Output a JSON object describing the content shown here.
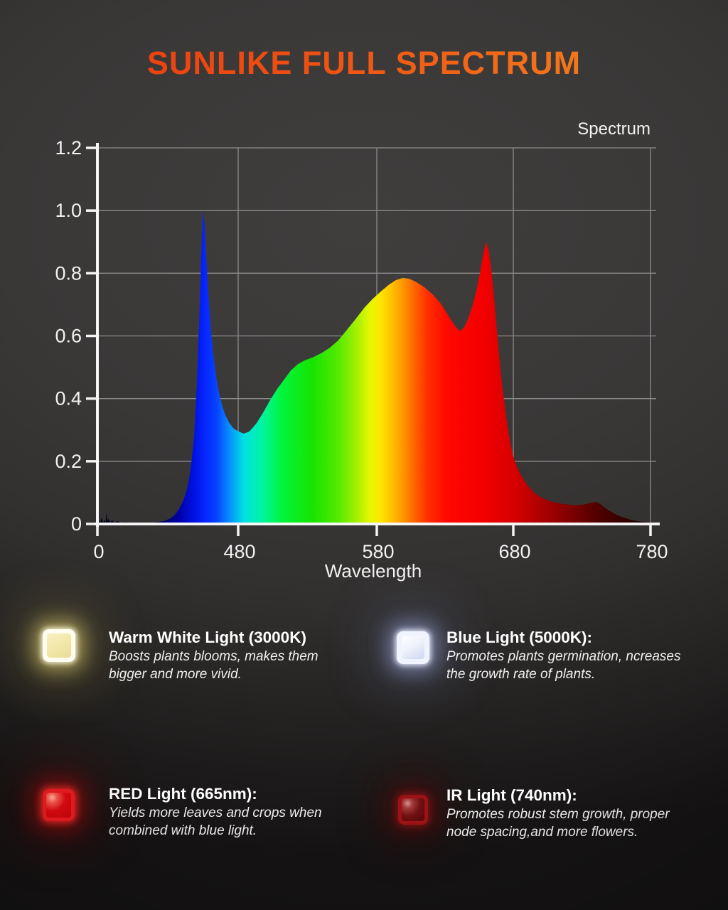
{
  "page": {
    "title": "SUNLIKE FULL SPECTRUM",
    "title_gradient": [
      "#e9380e",
      "#f68b1f"
    ],
    "background_color": "#363433",
    "text_color": "#f2f2f2"
  },
  "chart_data": {
    "type": "area",
    "title": "Spectrum",
    "xlabel": "Wavelength",
    "x_ticks": [
      0,
      480,
      580,
      680,
      780
    ],
    "y_tick_labels": [
      "0",
      "0.2",
      "0.4",
      "0.6",
      "0.8",
      "1.0",
      "1.2"
    ],
    "ylim": [
      0,
      1.2
    ],
    "grid": true,
    "x_scale_note": "0-480 nm compressed into the first tick interval; 100 nm per interval thereafter",
    "axis_color": "#f5f5f5",
    "grid_color": "#a0a0a0",
    "points": [
      [
        0,
        0.002
      ],
      [
        5,
        0.01
      ],
      [
        9,
        0.003
      ],
      [
        14,
        0.02
      ],
      [
        19,
        0.005
      ],
      [
        24,
        0.012
      ],
      [
        28,
        0.005
      ],
      [
        31,
        0.038
      ],
      [
        34,
        0.007
      ],
      [
        38,
        0.018
      ],
      [
        43,
        0.004
      ],
      [
        50,
        0.012
      ],
      [
        58,
        0.004
      ],
      [
        68,
        0.009
      ],
      [
        80,
        0.004
      ],
      [
        95,
        0.006
      ],
      [
        115,
        0.003
      ],
      [
        140,
        0.004
      ],
      [
        175,
        0.004
      ],
      [
        205,
        0.006
      ],
      [
        230,
        0.01
      ],
      [
        250,
        0.018
      ],
      [
        265,
        0.03
      ],
      [
        280,
        0.05
      ],
      [
        293,
        0.075
      ],
      [
        304,
        0.105
      ],
      [
        313,
        0.145
      ],
      [
        321,
        0.2
      ],
      [
        330,
        0.28
      ],
      [
        339,
        0.44
      ],
      [
        348,
        0.66
      ],
      [
        354,
        0.85
      ],
      [
        358,
        0.95
      ],
      [
        361,
        1.0
      ],
      [
        365,
        0.96
      ],
      [
        369,
        0.89
      ],
      [
        374,
        0.8
      ],
      [
        380,
        0.71
      ],
      [
        387,
        0.62
      ],
      [
        394,
        0.55
      ],
      [
        402,
        0.49
      ],
      [
        412,
        0.43
      ],
      [
        423,
        0.385
      ],
      [
        435,
        0.35
      ],
      [
        448,
        0.325
      ],
      [
        462,
        0.307
      ],
      [
        472,
        0.3
      ],
      [
        480,
        0.296
      ],
      [
        484,
        0.288
      ],
      [
        488,
        0.295
      ],
      [
        493,
        0.32
      ],
      [
        498,
        0.355
      ],
      [
        503,
        0.395
      ],
      [
        508,
        0.43
      ],
      [
        513,
        0.46
      ],
      [
        518,
        0.49
      ],
      [
        523,
        0.51
      ],
      [
        528,
        0.522
      ],
      [
        534,
        0.532
      ],
      [
        540,
        0.545
      ],
      [
        546,
        0.562
      ],
      [
        552,
        0.585
      ],
      [
        558,
        0.617
      ],
      [
        564,
        0.65
      ],
      [
        571,
        0.69
      ],
      [
        577,
        0.718
      ],
      [
        583,
        0.742
      ],
      [
        589,
        0.764
      ],
      [
        594,
        0.778
      ],
      [
        599,
        0.785
      ],
      [
        604,
        0.782
      ],
      [
        609,
        0.772
      ],
      [
        615,
        0.755
      ],
      [
        621,
        0.732
      ],
      [
        627,
        0.702
      ],
      [
        632,
        0.668
      ],
      [
        636,
        0.64
      ],
      [
        639,
        0.622
      ],
      [
        641,
        0.615
      ],
      [
        644,
        0.628
      ],
      [
        647,
        0.655
      ],
      [
        650,
        0.695
      ],
      [
        653,
        0.745
      ],
      [
        656,
        0.81
      ],
      [
        658,
        0.862
      ],
      [
        660,
        0.9
      ],
      [
        662,
        0.872
      ],
      [
        664,
        0.805
      ],
      [
        666,
        0.72
      ],
      [
        668,
        0.615
      ],
      [
        670,
        0.52
      ],
      [
        672,
        0.435
      ],
      [
        674,
        0.365
      ],
      [
        676,
        0.305
      ],
      [
        678,
        0.255
      ],
      [
        680,
        0.215
      ],
      [
        683,
        0.178
      ],
      [
        686,
        0.152
      ],
      [
        690,
        0.125
      ],
      [
        694,
        0.105
      ],
      [
        698,
        0.09
      ],
      [
        703,
        0.079
      ],
      [
        708,
        0.071
      ],
      [
        714,
        0.065
      ],
      [
        720,
        0.062
      ],
      [
        726,
        0.06
      ],
      [
        731,
        0.062
      ],
      [
        736,
        0.066
      ],
      [
        740,
        0.071
      ],
      [
        743,
        0.065
      ],
      [
        746,
        0.054
      ],
      [
        750,
        0.042
      ],
      [
        755,
        0.03
      ],
      [
        760,
        0.021
      ],
      [
        766,
        0.013
      ],
      [
        772,
        0.008
      ],
      [
        778,
        0.006
      ],
      [
        784,
        0.004
      ]
    ],
    "spectrum_gradient": [
      [
        0.0,
        "#000014"
      ],
      [
        0.1,
        "#00003c"
      ],
      [
        0.145,
        "#0000a8"
      ],
      [
        0.175,
        "#0014e8"
      ],
      [
        0.195,
        "#0629ff"
      ],
      [
        0.215,
        "#0747ff"
      ],
      [
        0.235,
        "#068cff"
      ],
      [
        0.262,
        "#00e0e4"
      ],
      [
        0.295,
        "#00f5a0"
      ],
      [
        0.33,
        "#00f53c"
      ],
      [
        0.385,
        "#16e400"
      ],
      [
        0.43,
        "#52ea00"
      ],
      [
        0.465,
        "#a8f000"
      ],
      [
        0.487,
        "#e4f800"
      ],
      [
        0.505,
        "#fce800"
      ],
      [
        0.525,
        "#ffc400"
      ],
      [
        0.545,
        "#ff9a00"
      ],
      [
        0.565,
        "#ff6a00"
      ],
      [
        0.59,
        "#ff3000"
      ],
      [
        0.625,
        "#ff0800"
      ],
      [
        0.68,
        "#f70000"
      ],
      [
        0.75,
        "#d40000"
      ],
      [
        0.82,
        "#960000"
      ],
      [
        0.9,
        "#4d0000"
      ],
      [
        1.0,
        "#140000"
      ]
    ]
  },
  "legend": [
    {
      "name": "Warm White Light (3000K)",
      "desc": [
        "Boosts plants blooms, makes them",
        "bigger and more vivid."
      ],
      "icon": "warm-white-led",
      "glow_color": "#ffe98a"
    },
    {
      "name": "Blue Light (5000K):",
      "desc": [
        "Promotes plants germination, ncreases",
        "the growth rate of plants."
      ],
      "icon": "blue-led",
      "glow_color": "#c9d4ff"
    },
    {
      "name": "RED Light (665nm):",
      "desc": [
        "Yields more leaves and crops when",
        "combined with blue light."
      ],
      "icon": "red-led",
      "glow_color": "#ff2020"
    },
    {
      "name": "IR Light (740nm):",
      "desc": [
        "Promotes robust stem growth, proper",
        "node spacing,and more flowers."
      ],
      "icon": "ir-led",
      "glow_color": "#8c0a0e"
    }
  ]
}
